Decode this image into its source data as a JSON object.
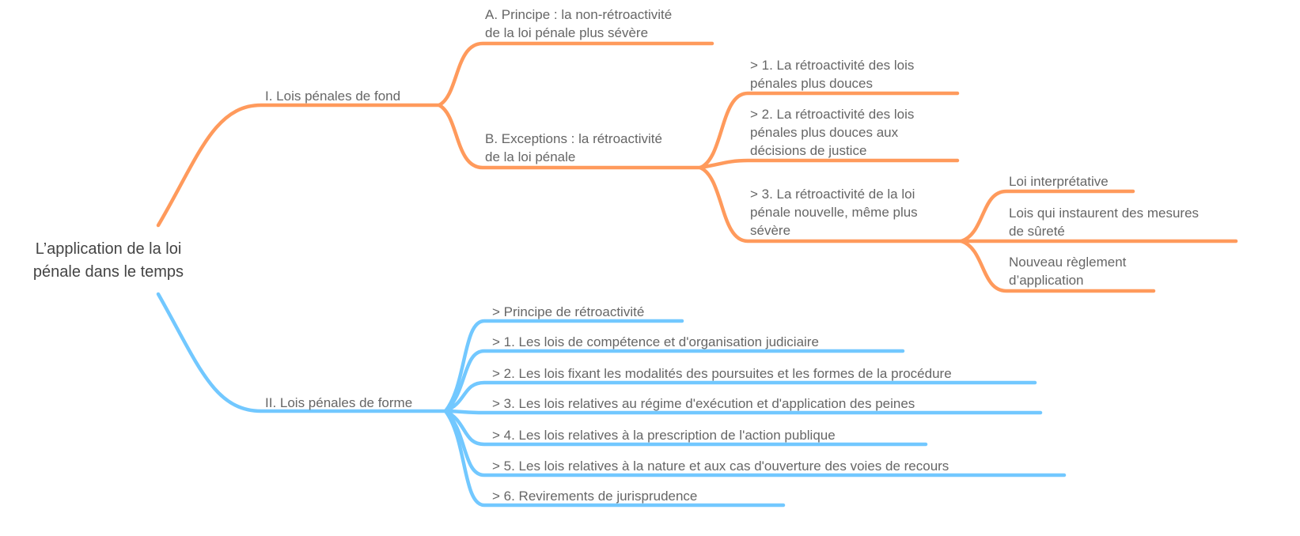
{
  "colors": {
    "branch_fond": "#FF9A5C",
    "branch_forme": "#72C8FF",
    "text": "#666666"
  },
  "root": {
    "lines": [
      "L’application de la loi",
      "pénale dans le temps"
    ]
  },
  "fond": {
    "label": "I.   Lois pénales de fond",
    "a": {
      "lines": [
        "A.  Principe : la non-rétroactivité",
        "de la loi pénale plus sévère"
      ]
    },
    "b": {
      "lines": [
        "B.  Exceptions : la rétroactivité",
        "de la loi pénale"
      ]
    },
    "b1": {
      "lines": [
        ">   1. La rétroactivité des lois",
        "pénales plus douces"
      ]
    },
    "b2": {
      "lines": [
        ">   2. La rétroactivité des lois",
        "pénales plus douces aux",
        "décisions de justice"
      ]
    },
    "b3": {
      "lines": [
        ">   3. La rétroactivité de la loi",
        "pénale nouvelle, même plus",
        "sévère"
      ]
    },
    "b3a": {
      "lines": [
        "Loi interprétative"
      ]
    },
    "b3b": {
      "lines": [
        "Lois qui instaurent des mesures",
        "de sûreté"
      ]
    },
    "b3c": {
      "lines": [
        "Nouveau règlement",
        "d’application"
      ]
    }
  },
  "forme": {
    "label": "II.  Lois pénales de forme",
    "items": [
      ">   Principe de rétroactivité",
      ">   1. Les lois de compétence et d'organisation judiciaire",
      ">   2. Les lois fixant les modalités des poursuites et les formes de la procédure",
      ">   3. Les lois relatives au régime d'exécution et d'application des peines",
      ">   4. Les lois relatives à la prescription de l'action publique",
      ">   5. Les lois relatives à la nature et aux cas d'ouverture des voies de recours",
      ">   6. Revirements de jurisprudence"
    ]
  }
}
